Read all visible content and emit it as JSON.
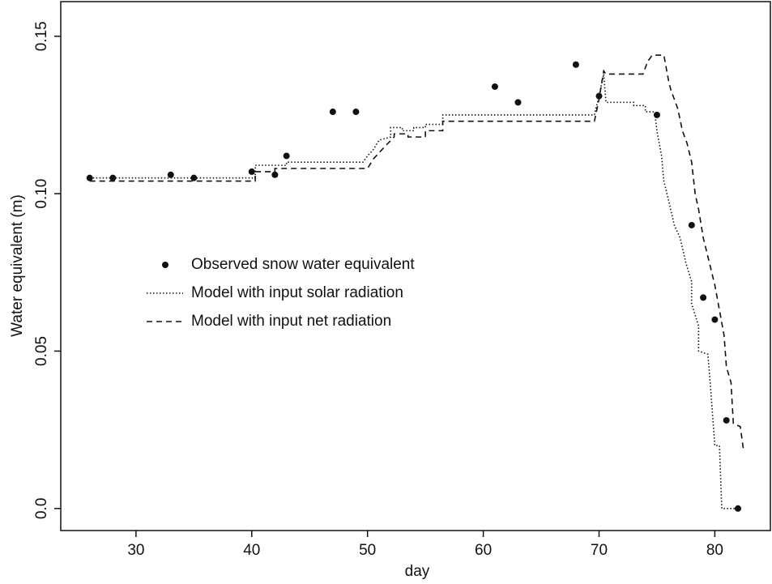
{
  "chart_data": {
    "type": "line",
    "xlabel": "day",
    "ylabel": "Water equivalent (m)",
    "xlim": [
      23.5,
      84.8
    ],
    "ylim": [
      -0.007,
      0.161
    ],
    "xticks": [
      30,
      40,
      50,
      60,
      70,
      80
    ],
    "yticks": [
      {
        "value": 0,
        "label": "0.0"
      },
      0.05,
      {
        "value": 0.1,
        "label": "0.10"
      },
      0.15
    ],
    "series": [
      {
        "name": "Observed snow water equivalent",
        "style": "points",
        "color": "#111111",
        "x": [
          26,
          28,
          33,
          35,
          40,
          42,
          43,
          47,
          49,
          61,
          63,
          68,
          70,
          75,
          78,
          79,
          80,
          81,
          82
        ],
        "values": [
          0.105,
          0.105,
          0.106,
          0.105,
          0.107,
          0.106,
          0.112,
          0.126,
          0.126,
          0.134,
          0.129,
          0.141,
          0.131,
          0.125,
          0.09,
          0.067,
          0.06,
          0.028,
          0.0
        ]
      },
      {
        "name": "Model with input solar radiation",
        "style": "dotted",
        "color": "#111111",
        "x": [
          26,
          40.3,
          40.3,
          43,
          43,
          49.6,
          50,
          50.5,
          51,
          52,
          52,
          53,
          53,
          54,
          54,
          55,
          55,
          56.5,
          56.5,
          69.6,
          70,
          70.4,
          70.6,
          73,
          73,
          74,
          74,
          74.8,
          75,
          75.4,
          75.6,
          76,
          76.5,
          77,
          77.5,
          78,
          78,
          78.6,
          78.6,
          79.4,
          79.6,
          80,
          80.4,
          80.6,
          82
        ],
        "values": [
          0.105,
          0.105,
          0.109,
          0.109,
          0.11,
          0.11,
          0.112,
          0.114,
          0.117,
          0.118,
          0.121,
          0.121,
          0.12,
          0.12,
          0.121,
          0.121,
          0.122,
          0.122,
          0.125,
          0.125,
          0.131,
          0.138,
          0.129,
          0.129,
          0.128,
          0.128,
          0.126,
          0.126,
          0.12,
          0.112,
          0.104,
          0.098,
          0.09,
          0.086,
          0.078,
          0.072,
          0.065,
          0.058,
          0.05,
          0.049,
          0.04,
          0.02,
          0.02,
          0.0,
          0.0
        ]
      },
      {
        "name": "Model with input net radiation",
        "style": "dashed",
        "color": "#111111",
        "x": [
          26,
          40.3,
          40.3,
          42,
          42,
          50,
          50.5,
          51,
          51.5,
          52.3,
          52.3,
          53.5,
          53.5,
          55,
          55,
          56.5,
          56.5,
          69.6,
          70,
          70.4,
          70.6,
          73.8,
          74.2,
          74.6,
          75.6,
          76,
          76.2,
          76.8,
          77.2,
          77.6,
          78,
          78.3,
          78.6,
          79,
          79.4,
          80,
          80.4,
          80.8,
          81,
          81.4,
          81.6,
          82.2,
          82.5
        ],
        "values": [
          0.104,
          0.104,
          0.107,
          0.107,
          0.108,
          0.108,
          0.111,
          0.113,
          0.115,
          0.118,
          0.119,
          0.119,
          0.118,
          0.118,
          0.12,
          0.12,
          0.123,
          0.123,
          0.13,
          0.139,
          0.138,
          0.138,
          0.142,
          0.144,
          0.144,
          0.136,
          0.133,
          0.127,
          0.12,
          0.116,
          0.11,
          0.1,
          0.095,
          0.086,
          0.08,
          0.071,
          0.063,
          0.055,
          0.045,
          0.04,
          0.027,
          0.026,
          0.018
        ]
      }
    ]
  }
}
